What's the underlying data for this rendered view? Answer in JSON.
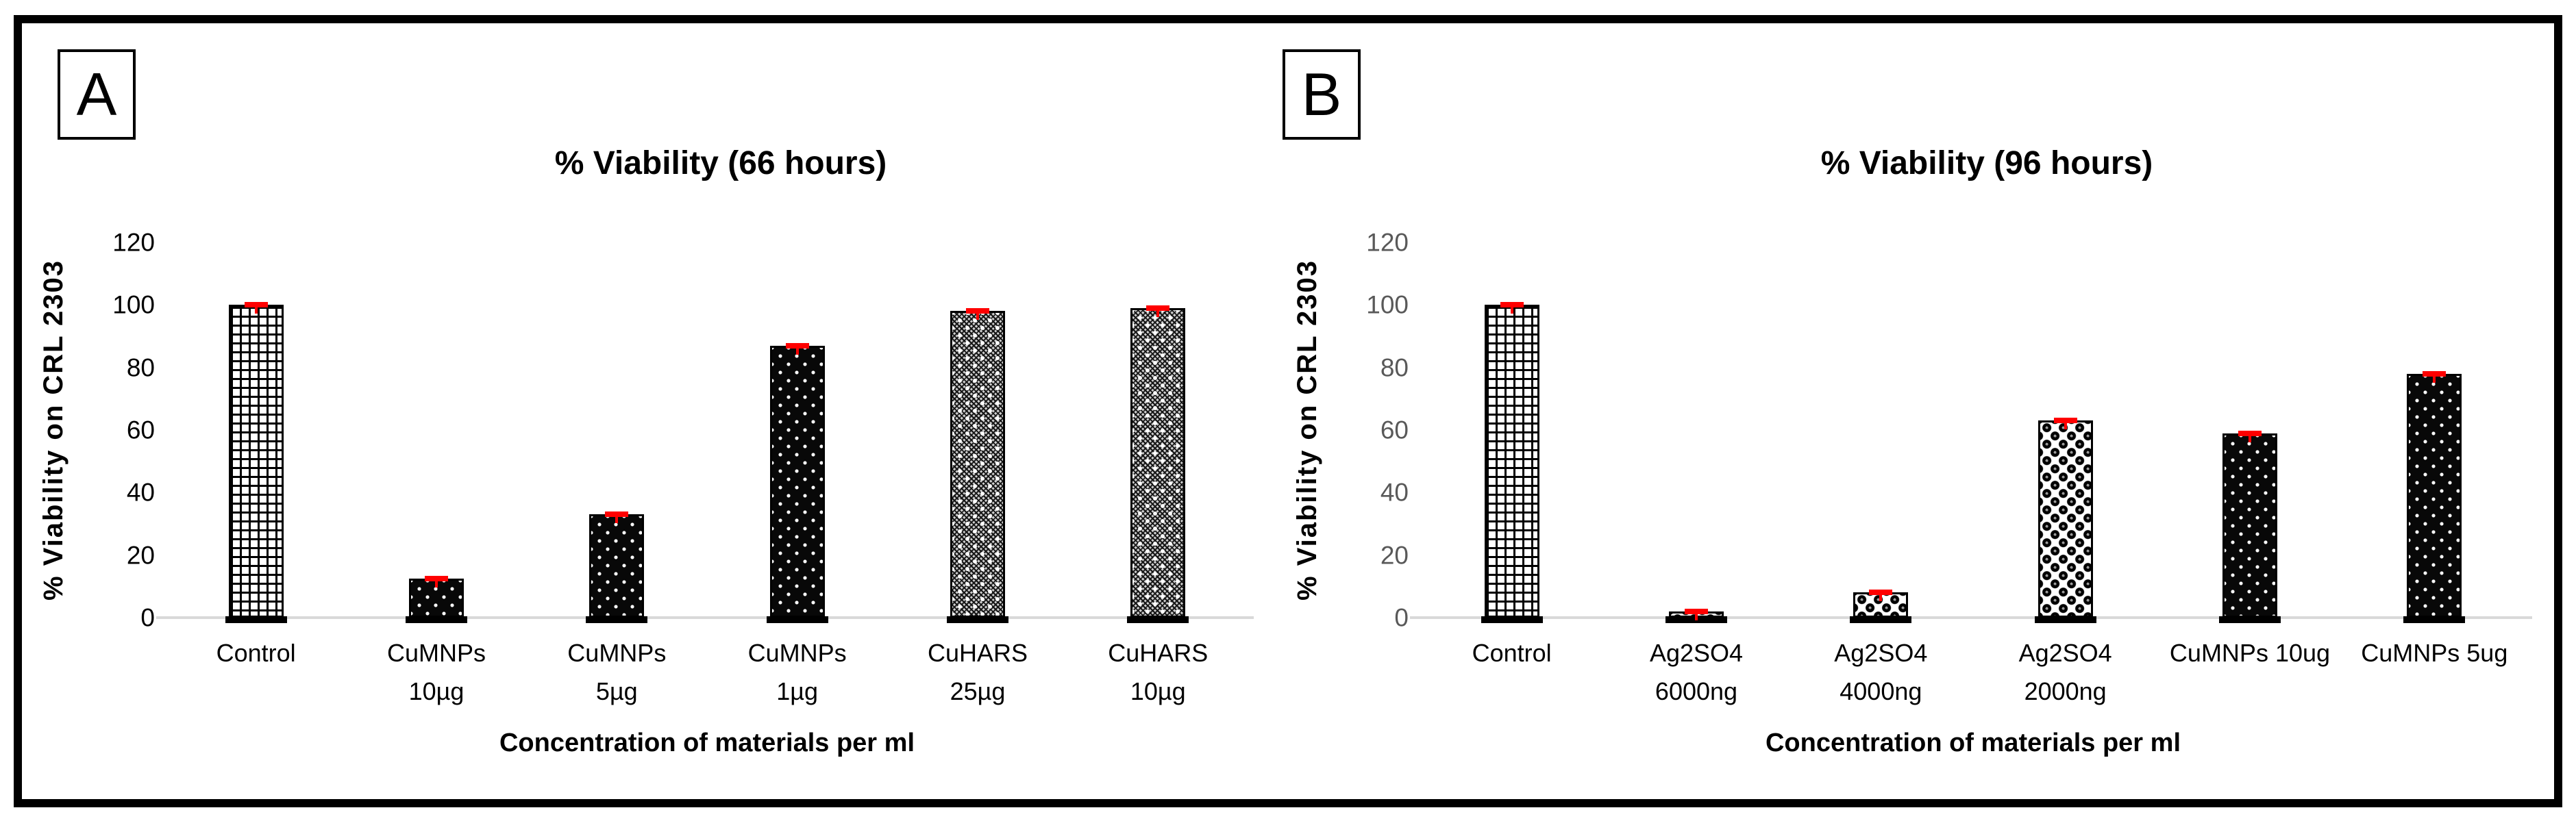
{
  "figure": {
    "background": "#FFFFFF",
    "border_color": "#000000",
    "panels": [
      {
        "label": "A"
      },
      {
        "label": "B"
      }
    ]
  },
  "chart_data": [
    {
      "type": "bar",
      "panel": "A",
      "title": "% Viability (66 hours)",
      "xlabel": "Concentration of materials per ml",
      "ylabel": "% Viability on CRL 2303",
      "ylim": [
        0,
        120
      ],
      "yticks": [
        0,
        20,
        40,
        60,
        80,
        100,
        120
      ],
      "tick_label_color": "#000000",
      "axis_line_color": "#D9D9D9",
      "error_bar_color": "#FF0000",
      "bar_outline_color": "#000000",
      "grid": false,
      "legend_position": "none",
      "categories": [
        "Control",
        "CuMNPs 10µg",
        "CuMNPs 5µg",
        "CuMNPs 1µg",
        "CuHARS 25µg",
        "CuHARS 10µg"
      ],
      "category_lines": [
        [
          "Control"
        ],
        [
          "CuMNPs",
          "10µg"
        ],
        [
          "CuMNPs",
          "5µg"
        ],
        [
          "CuMNPs",
          "1µg"
        ],
        [
          "CuHARS",
          "25µg"
        ],
        [
          "CuHARS",
          "10µg"
        ]
      ],
      "values": [
        100,
        12.5,
        33,
        87,
        98,
        99
      ],
      "error_values": [
        1,
        1.5,
        1.5,
        1,
        1,
        1
      ],
      "patterns": [
        "small-grid",
        "white-dots-on-black",
        "white-dots-on-black",
        "white-dots-on-black",
        "gray-weave",
        "gray-weave"
      ]
    },
    {
      "type": "bar",
      "panel": "B",
      "title": "% Viability (96 hours)",
      "xlabel": "Concentration of materials per ml",
      "ylabel": "% Viability on CRL 2303",
      "ylim": [
        0,
        120
      ],
      "yticks": [
        0,
        20,
        40,
        60,
        80,
        100,
        120
      ],
      "tick_label_color": "#595959",
      "axis_line_color": "#D9D9D9",
      "error_bar_color": "#FF0000",
      "bar_outline_color": "#000000",
      "grid": false,
      "legend_position": "none",
      "categories": [
        "Control",
        "Ag2SO4 6000ng",
        "Ag2SO4 4000ng",
        "Ag2SO4 2000ng",
        "CuMNPs 10ug",
        "CuMNPs 5ug"
      ],
      "category_lines": [
        [
          "Control"
        ],
        [
          "Ag2SO4",
          "6000ng"
        ],
        [
          "Ag2SO4",
          "4000ng"
        ],
        [
          "Ag2SO4",
          "2000ng"
        ],
        [
          "CuMNPs 10ug"
        ],
        [
          "CuMNPs 5ug"
        ]
      ],
      "values": [
        100,
        2,
        8,
        63,
        59,
        78
      ],
      "error_values": [
        1,
        1,
        1.5,
        1.5,
        1,
        1
      ],
      "patterns": [
        "small-grid",
        "black-beads-checker",
        "black-beads-checker",
        "black-beads-checker",
        "white-dots-on-black",
        "white-dots-on-black"
      ]
    }
  ]
}
